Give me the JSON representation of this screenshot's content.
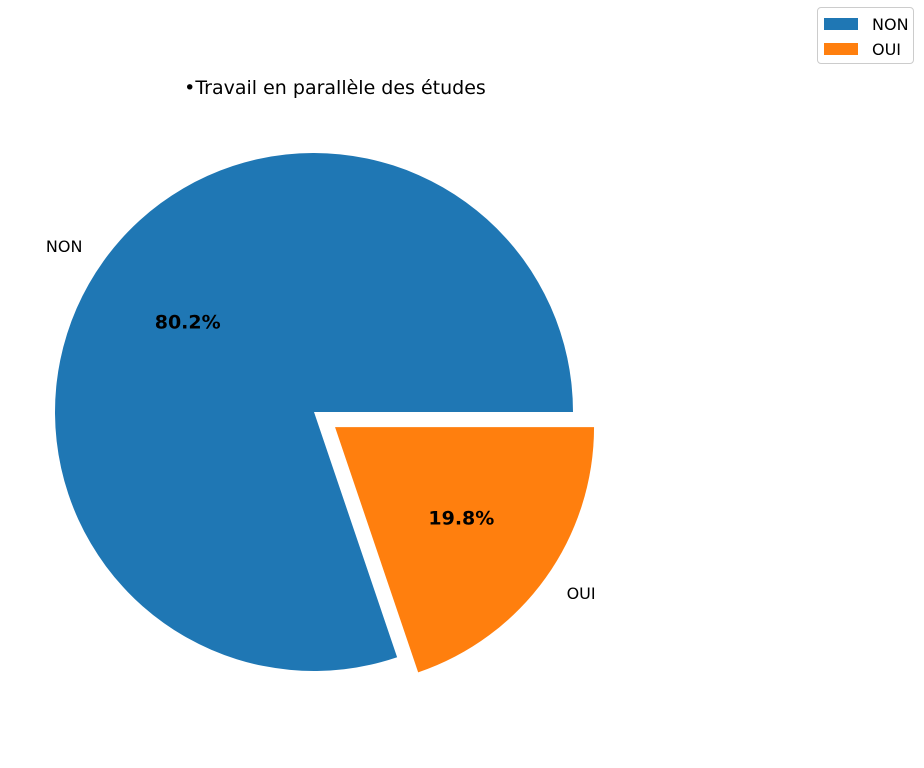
{
  "chart_data": {
    "type": "pie",
    "title": "•Travail en parallèle des études",
    "categories": [
      "NON",
      "OUI"
    ],
    "values": [
      80.2,
      19.8
    ],
    "value_labels": [
      "80.2%",
      "19.8%"
    ],
    "colors": [
      "#1f77b4",
      "#ff7f0e"
    ],
    "explode": [
      0,
      0.1
    ],
    "legend": {
      "placement": "top-right",
      "entries": [
        "NON",
        "OUI"
      ]
    }
  }
}
